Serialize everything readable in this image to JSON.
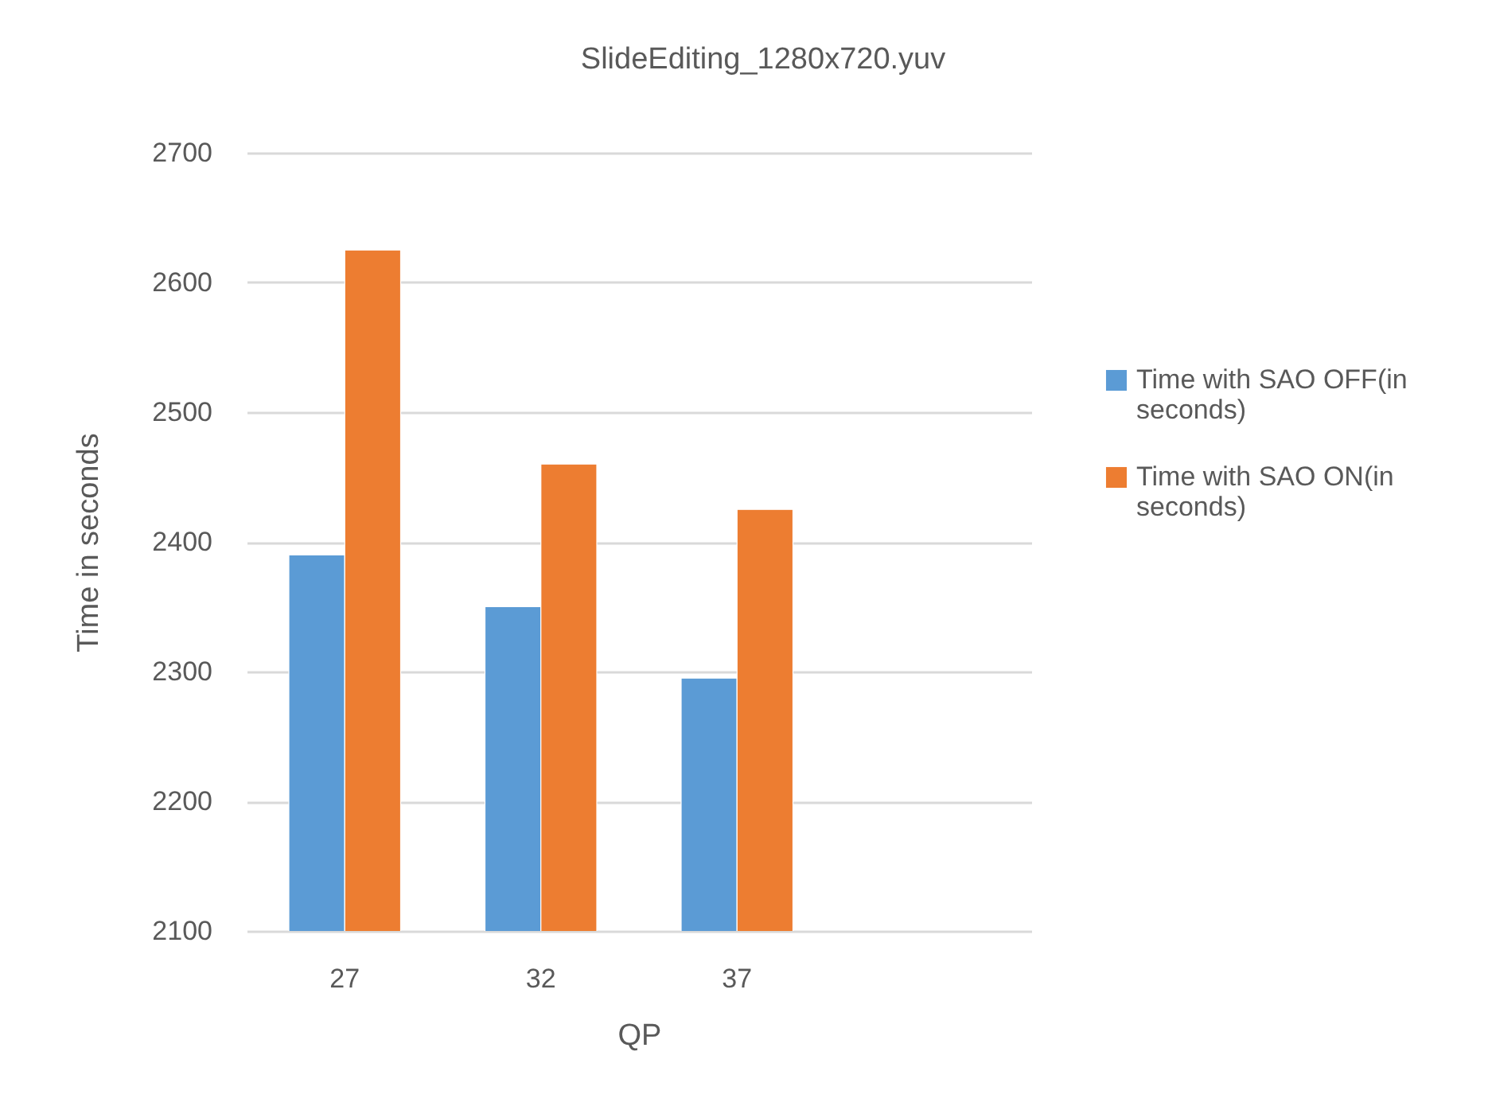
{
  "chart_data": {
    "type": "bar",
    "title": "SlideEditing_1280x720.yuv",
    "xlabel": "QP",
    "ylabel": "Time in seconds",
    "categories": [
      "27",
      "32",
      "37",
      null
    ],
    "series": [
      {
        "name": "Time with SAO OFF(in seconds)",
        "color": "#5b9bd5",
        "values": [
          2390,
          2350,
          2295,
          null
        ]
      },
      {
        "name": "Time with SAO ON(in seconds)",
        "color": "#ed7d31",
        "values": [
          2625,
          2460,
          2425,
          null
        ]
      }
    ],
    "ylim": [
      2100,
      2700
    ],
    "yticks": [
      2100,
      2200,
      2300,
      2400,
      2500,
      2600,
      2700
    ],
    "grid": "y",
    "legend": "right"
  }
}
